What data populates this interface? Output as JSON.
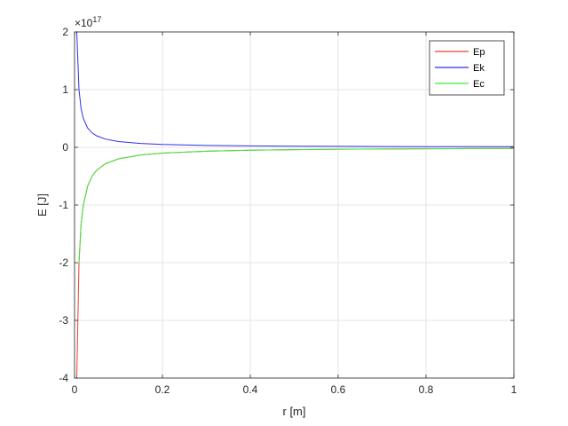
{
  "chart_data": {
    "type": "line",
    "xlabel": "r [m]",
    "ylabel": "E [J]",
    "xlim": [
      0,
      1
    ],
    "ylim": [
      -4,
      2
    ],
    "y_exponent_label": "×10",
    "y_exponent_power": "17",
    "grid": true,
    "legend_position": "top-right",
    "x_ticks": [
      0,
      0.2,
      0.4,
      0.6,
      0.8,
      1
    ],
    "x_tick_labels": [
      "0",
      "0.2",
      "0.4",
      "0.6",
      "0.8",
      "1"
    ],
    "y_ticks": [
      -4,
      -3,
      -2,
      -1,
      0,
      1,
      2
    ],
    "y_tick_labels": [
      "-4",
      "-3",
      "-2",
      "-1",
      "0",
      "1",
      "2"
    ],
    "series": [
      {
        "name": "Ep",
        "color": "#e8402c",
        "x": [
          0.005,
          0.01,
          0.015,
          0.02,
          0.03,
          0.04,
          0.05,
          0.07,
          0.1,
          0.15,
          0.2,
          0.3,
          0.4,
          0.5,
          0.6,
          0.7,
          0.8,
          0.9,
          1.0
        ],
        "y": [
          -4.0,
          -2.0,
          -1.333,
          -1.0,
          -0.667,
          -0.5,
          -0.4,
          -0.286,
          -0.2,
          -0.133,
          -0.1,
          -0.067,
          -0.05,
          -0.04,
          -0.033,
          -0.029,
          -0.025,
          -0.022,
          -0.02
        ]
      },
      {
        "name": "Ek",
        "color": "#2e2ee6",
        "x": [
          0.005,
          0.01,
          0.015,
          0.02,
          0.03,
          0.04,
          0.05,
          0.07,
          0.1,
          0.15,
          0.2,
          0.3,
          0.4,
          0.5,
          0.6,
          0.7,
          0.8,
          0.9,
          1.0
        ],
        "y": [
          2.0,
          1.0,
          0.667,
          0.5,
          0.333,
          0.25,
          0.2,
          0.143,
          0.1,
          0.067,
          0.05,
          0.033,
          0.025,
          0.02,
          0.017,
          0.014,
          0.0125,
          0.011,
          0.01
        ]
      },
      {
        "name": "Ec",
        "color": "#3ee63e",
        "x": [
          0.01,
          0.015,
          0.02,
          0.03,
          0.04,
          0.05,
          0.07,
          0.1,
          0.15,
          0.2,
          0.3,
          0.4,
          0.5,
          0.6,
          0.7,
          0.8,
          0.9,
          1.0
        ],
        "y": [
          -2.0,
          -1.333,
          -1.0,
          -0.667,
          -0.5,
          -0.4,
          -0.286,
          -0.2,
          -0.133,
          -0.1,
          -0.067,
          -0.05,
          -0.04,
          -0.033,
          -0.029,
          -0.025,
          -0.022,
          -0.02
        ]
      }
    ]
  }
}
